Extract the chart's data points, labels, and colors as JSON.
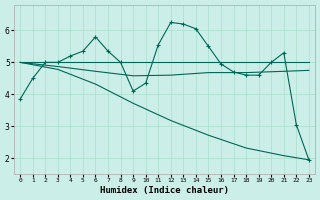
{
  "xlabel": "Humidex (Indice chaleur)",
  "bg_color": "#cceee8",
  "grid_color": "#aaddcc",
  "line_color": "#006655",
  "xlim": [
    -0.5,
    23.5
  ],
  "ylim": [
    1.5,
    6.8
  ],
  "yticks": [
    2,
    3,
    4,
    5,
    6
  ],
  "xticks": [
    0,
    1,
    2,
    3,
    4,
    5,
    6,
    7,
    8,
    9,
    10,
    11,
    12,
    13,
    14,
    15,
    16,
    17,
    18,
    19,
    20,
    21,
    22,
    23
  ],
  "series": [
    {
      "x": [
        0,
        1,
        2,
        3,
        4,
        5,
        6,
        7,
        8,
        9,
        10,
        11,
        12,
        13,
        14,
        15,
        16,
        17,
        18,
        19,
        20,
        21,
        22,
        23
      ],
      "y": [
        3.85,
        4.5,
        5.0,
        5.0,
        5.2,
        5.35,
        5.8,
        5.35,
        5.0,
        4.1,
        4.35,
        5.55,
        6.25,
        6.2,
        6.05,
        5.5,
        4.95,
        4.7,
        4.6,
        4.6,
        5.0,
        5.3,
        3.05,
        1.95
      ],
      "marker": "+"
    },
    {
      "x": [
        0,
        23
      ],
      "y": [
        5.0,
        5.0
      ],
      "marker": null
    },
    {
      "x": [
        0,
        3,
        6,
        9,
        12,
        15,
        18,
        21,
        23
      ],
      "y": [
        5.0,
        4.87,
        4.72,
        4.58,
        4.6,
        4.68,
        4.68,
        4.72,
        4.75
      ],
      "marker": null
    },
    {
      "x": [
        0,
        3,
        6,
        9,
        12,
        15,
        18,
        21,
        23
      ],
      "y": [
        5.0,
        4.78,
        4.32,
        3.72,
        3.18,
        2.72,
        2.32,
        2.08,
        1.95
      ],
      "marker": null
    }
  ]
}
